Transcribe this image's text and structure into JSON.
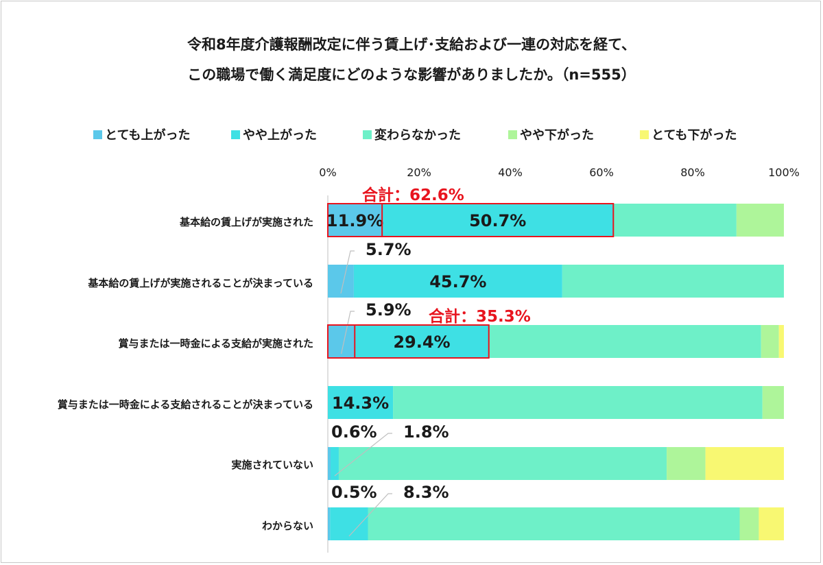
{
  "chart_data": {
    "type": "bar",
    "orientation": "horizontal",
    "stacked": true,
    "title_lines": [
      "令和8年度介護報酬改定に伴う賃上げ･支給および一連の対応を経て、",
      "この職場で働く満足度にどのような影響がありましたか。（n=555）"
    ],
    "xlim": [
      0,
      100
    ],
    "x_ticks": [
      "0%",
      "20%",
      "40%",
      "60%",
      "80%",
      "100%"
    ],
    "x_tick_values": [
      0,
      20,
      40,
      60,
      80,
      100
    ],
    "legend_position": "top",
    "categories": [
      "基本給の賃上げが実施された",
      "基本給の賃上げが実施されることが決まっている",
      "賞与または一時金による支給が実施された",
      "賞与または一時金による支給されることが決まっている",
      "実施されていない",
      "わからない"
    ],
    "series": [
      {
        "name": "とても上がった",
        "color": "#5bc8ea",
        "values": [
          11.9,
          5.7,
          5.9,
          0,
          0.6,
          0.5
        ]
      },
      {
        "name": "やや上がった",
        "color": "#3ee0e4",
        "values": [
          50.7,
          45.7,
          29.4,
          14.3,
          1.8,
          8.3
        ]
      },
      {
        "name": "変わらなかった",
        "color": "#6ef0c8",
        "values": [
          27.0,
          48.6,
          59.7,
          81.0,
          71.9,
          81.5
        ]
      },
      {
        "name": "やや下がった",
        "color": "#aef59a",
        "values": [
          10.4,
          0,
          3.9,
          4.7,
          8.5,
          4.2
        ]
      },
      {
        "name": "とても下がった",
        "color": "#f8f872",
        "values": [
          0,
          0,
          1.1,
          0,
          17.2,
          5.5
        ]
      }
    ],
    "data_labels": [
      {
        "category": 0,
        "series": 0,
        "text": "11.9%"
      },
      {
        "category": 0,
        "series": 1,
        "text": "50.7%"
      },
      {
        "category": 1,
        "series": 0,
        "text": "5.7%"
      },
      {
        "category": 1,
        "series": 1,
        "text": "45.7%"
      },
      {
        "category": 2,
        "series": 0,
        "text": "5.9%"
      },
      {
        "category": 2,
        "series": 1,
        "text": "29.4%"
      },
      {
        "category": 3,
        "series": 1,
        "text": "14.3%"
      },
      {
        "category": 4,
        "series": 0,
        "text": "0.6%"
      },
      {
        "category": 4,
        "series": 1,
        "text": "1.8%"
      },
      {
        "category": 5,
        "series": 0,
        "text": "0.5%"
      },
      {
        "category": 5,
        "series": 1,
        "text": "8.3%"
      }
    ],
    "annotations": [
      {
        "category": 0,
        "text": "合計：62.6%",
        "value": 62.6,
        "color": "#e8141e"
      },
      {
        "category": 2,
        "text": "合計：35.3%",
        "value": 35.3,
        "color": "#e8141e"
      }
    ]
  }
}
